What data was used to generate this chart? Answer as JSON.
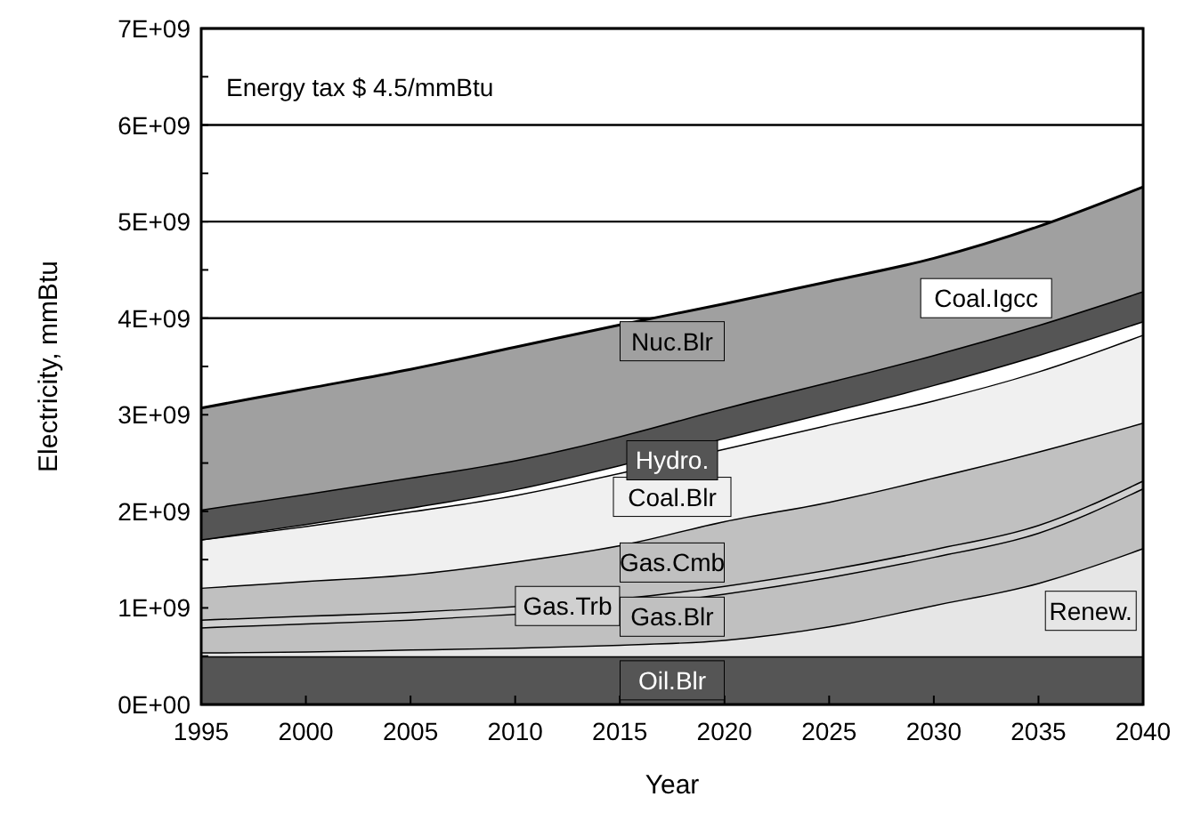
{
  "chart_data": {
    "type": "area",
    "stacked": true,
    "xlabel": "Year",
    "ylabel": "Electricity, mmBtu",
    "annotations": [
      "Energy tax $ 4.5/mmBtu"
    ],
    "x": [
      1995,
      2000,
      2005,
      2010,
      2015,
      2020,
      2025,
      2030,
      2035,
      2040
    ],
    "xlim": [
      1995,
      2040
    ],
    "xticks": [
      1995,
      2000,
      2005,
      2010,
      2015,
      2020,
      2025,
      2030,
      2035,
      2040
    ],
    "ylim": [
      0,
      7000000000.0
    ],
    "yticks": [
      {
        "value": 0,
        "label": "0E+00"
      },
      {
        "value": 1000000000.0,
        "label": "1E+09"
      },
      {
        "value": 2000000000.0,
        "label": "2E+09"
      },
      {
        "value": 3000000000.0,
        "label": "3E+09"
      },
      {
        "value": 4000000000.0,
        "label": "4E+09"
      },
      {
        "value": 5000000000.0,
        "label": "5E+09"
      },
      {
        "value": 6000000000.0,
        "label": "6E+09"
      },
      {
        "value": 7000000000.0,
        "label": "7E+09"
      }
    ],
    "grid": "y",
    "series": [
      {
        "name": "Oil.Blr",
        "color": "#555555",
        "values": [
          500000000.0,
          500000000.0,
          500000000.0,
          500000000.0,
          500000000.0,
          500000000.0,
          500000000.0,
          500000000.0,
          500000000.0,
          500000000.0
        ]
      },
      {
        "name": "Renew.",
        "color": "#e6e6e6",
        "values": [
          40000000.0,
          50000000.0,
          70000000.0,
          90000000.0,
          120000000.0,
          170000000.0,
          310000000.0,
          530000000.0,
          760000000.0,
          1120000000.0
        ]
      },
      {
        "name": "Gas.Blr",
        "color": "#c0c0c0",
        "values": [
          260000000.0,
          290000000.0,
          310000000.0,
          350000000.0,
          400000000.0,
          480000000.0,
          510000000.0,
          500000000.0,
          520000000.0,
          620000000.0
        ]
      },
      {
        "name": "Gas.Trb",
        "color": "#d0d0d0",
        "values": [
          80000000.0,
          80000000.0,
          80000000.0,
          80000000.0,
          80000000.0,
          80000000.0,
          80000000.0,
          80000000.0,
          80000000.0,
          80000000.0
        ]
      },
      {
        "name": "Gas.Cmb",
        "color": "#c0c0c0",
        "values": [
          330000000.0,
          360000000.0,
          390000000.0,
          460000000.0,
          550000000.0,
          670000000.0,
          700000000.0,
          740000000.0,
          760000000.0,
          600000000.0
        ]
      },
      {
        "name": "Coal.Blr",
        "color": "#f0f0f0",
        "values": [
          500000000.0,
          570000000.0,
          650000000.0,
          690000000.0,
          750000000.0,
          750000000.0,
          800000000.0,
          800000000.0,
          830000000.0,
          910000000.0
        ]
      },
      {
        "name": "Coal.Igcc",
        "color": "#ffffff",
        "values": [
          0,
          20000000.0,
          40000000.0,
          60000000.0,
          80000000.0,
          110000000.0,
          130000000.0,
          160000000.0,
          170000000.0,
          140000000.0
        ]
      },
      {
        "name": "Hydro.",
        "color": "#555555",
        "values": [
          310000000.0,
          310000000.0,
          310000000.0,
          300000000.0,
          300000000.0,
          310000000.0,
          310000000.0,
          310000000.0,
          310000000.0,
          310000000.0
        ]
      },
      {
        "name": "Nuc.Blr",
        "color": "#a0a0a0",
        "values": [
          1050000000.0,
          1090000000.0,
          1120000000.0,
          1170000000.0,
          1150000000.0,
          1080000000.0,
          1040000000.0,
          1000000000.0,
          1020000000.0,
          1080000000.0
        ]
      }
    ]
  }
}
